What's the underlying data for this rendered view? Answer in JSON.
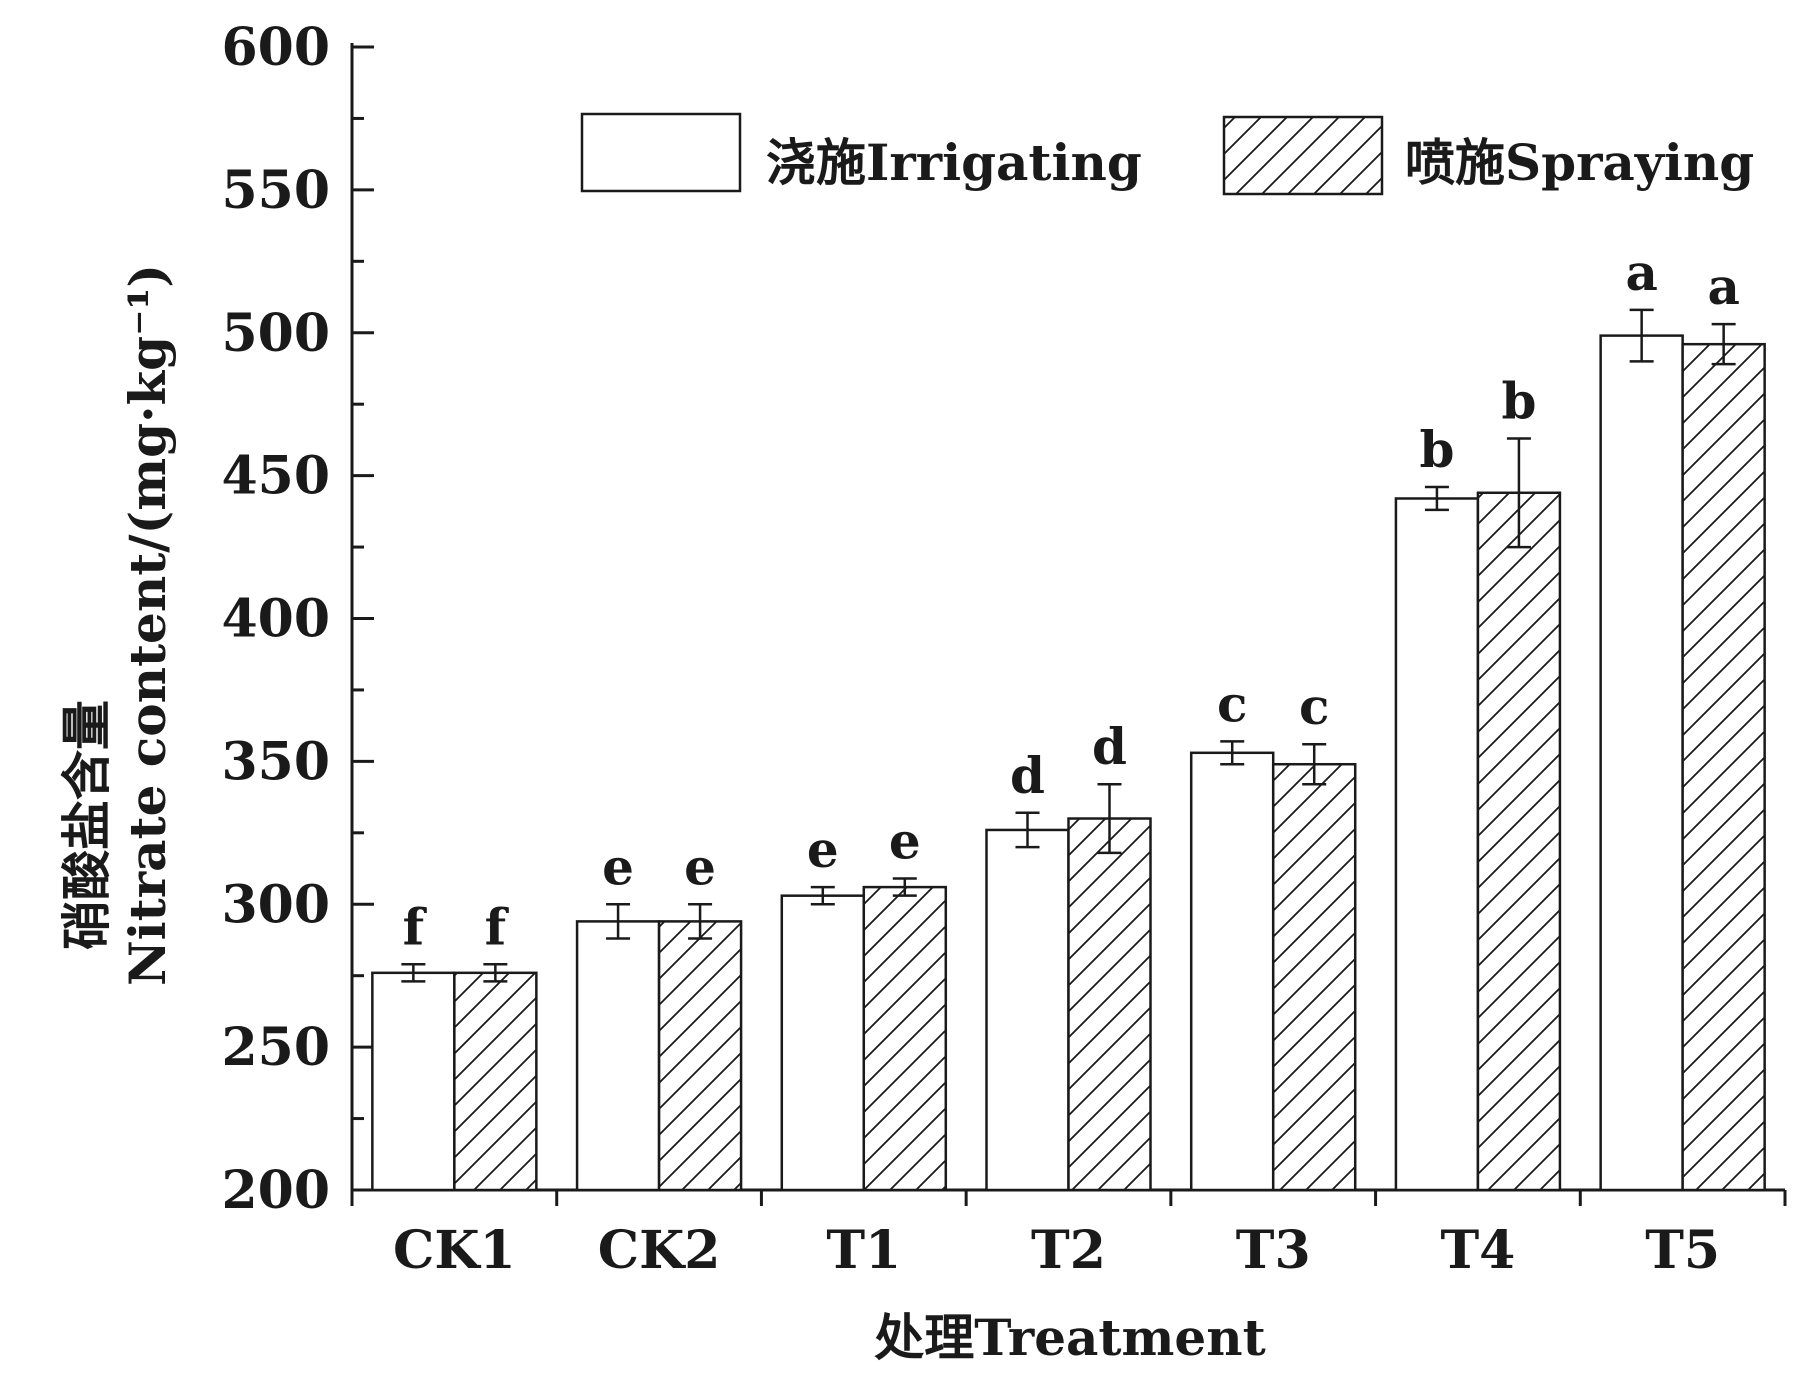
{
  "chart_data": {
    "type": "bar",
    "title": "",
    "xlabel": "处理Treatment",
    "ylabel": "硝酸盐含量Nitrate content/(mg·kg⁻¹)",
    "ylabel_cn": "硝酸盐含量",
    "ylabel_en": "Nitrate content/(mg·kg⁻¹)",
    "ylim": [
      200,
      600
    ],
    "yticks": [
      "200",
      "250",
      "300",
      "350",
      "400",
      "450",
      "500",
      "550",
      "600"
    ],
    "categories": [
      "CK1",
      "CK2",
      "T1",
      "T2",
      "T3",
      "T4",
      "T5"
    ],
    "legend_position": "top-right",
    "grid": false,
    "series": [
      {
        "name": "浇施Irrigating",
        "pattern": "solid-white",
        "values": [
          276,
          294,
          303,
          326,
          353,
          442,
          499
        ],
        "errors": [
          3,
          6,
          3,
          6,
          4,
          4,
          9
        ],
        "labels": [
          "f",
          "e",
          "e",
          "d",
          "c",
          "b",
          "a"
        ]
      },
      {
        "name": "喷施Spraying",
        "pattern": "hatched",
        "values": [
          276,
          294,
          306,
          330,
          349,
          444,
          496
        ],
        "errors": [
          3,
          6,
          3,
          12,
          7,
          19,
          7
        ],
        "labels": [
          "f",
          "e",
          "e",
          "d",
          "c",
          "b",
          "a"
        ]
      }
    ],
    "colors": {
      "bar_fill": "#ffffff",
      "stroke": "#1a1a1a",
      "hatch": "#1a1a1a"
    }
  }
}
